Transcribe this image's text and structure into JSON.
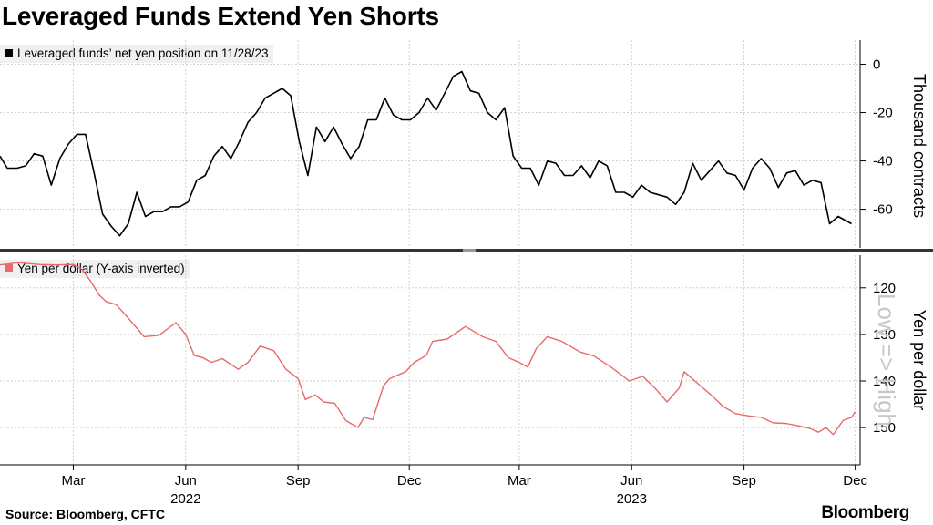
{
  "header": {
    "title": "Leveraged Funds Extend Yen Shorts"
  },
  "footer": {
    "source": "Source: Bloomberg, CFTC",
    "brand": "Bloomberg"
  },
  "colors": {
    "top_series": "#000000",
    "bottom_series": "#e86a6a",
    "grid": "#cfcfcf",
    "divider": "#333333"
  },
  "icons": {
    "brand_icon": "bloomberg-logo-glyph"
  },
  "chart_data": [
    {
      "type": "line",
      "legend": "Leveraged funds’ net yen position on 11/28/23",
      "ylabel": "Thousand contracts",
      "ylim": [
        -76,
        10
      ],
      "yticks": [
        0,
        -20,
        -40,
        -60
      ],
      "grid": true,
      "x_tick_labels": [
        "Mar",
        "Jun",
        "Sep",
        "Dec",
        "Mar",
        "Jun",
        "Sep",
        "Dec"
      ],
      "year_labels": [
        "2022",
        "2023"
      ],
      "x_range": [
        "2021-12-31",
        "2023-12-05"
      ],
      "series": [
        {
          "x": [
            "2021-12-31",
            "2022-01-06",
            "2022-01-14",
            "2022-01-21",
            "2022-01-28",
            "2022-02-04",
            "2022-02-11",
            "2022-02-18",
            "2022-02-25",
            "2022-03-04",
            "2022-03-11",
            "2022-03-18",
            "2022-03-25",
            "2022-04-01",
            "2022-04-08",
            "2022-04-15",
            "2022-04-22",
            "2022-04-29",
            "2022-05-06",
            "2022-05-13",
            "2022-05-20",
            "2022-05-27",
            "2022-06-03",
            "2022-06-10",
            "2022-06-17",
            "2022-06-24",
            "2022-07-01",
            "2022-07-08",
            "2022-07-15",
            "2022-07-22",
            "2022-07-29",
            "2022-08-05",
            "2022-08-12",
            "2022-08-19",
            "2022-08-26",
            "2022-09-02",
            "2022-09-09",
            "2022-09-16",
            "2022-09-23",
            "2022-09-30",
            "2022-10-07",
            "2022-10-14",
            "2022-10-21",
            "2022-10-28",
            "2022-11-04",
            "2022-11-11",
            "2022-11-18",
            "2022-11-25",
            "2022-12-02",
            "2022-12-09",
            "2022-12-16",
            "2022-12-23",
            "2022-12-30",
            "2023-01-06",
            "2023-01-13",
            "2023-01-20",
            "2023-01-27",
            "2023-02-03",
            "2023-02-10",
            "2023-02-17",
            "2023-02-24",
            "2023-03-03",
            "2023-03-10",
            "2023-03-17",
            "2023-03-24",
            "2023-03-31",
            "2023-04-07",
            "2023-04-14",
            "2023-04-21",
            "2023-04-28",
            "2023-05-05",
            "2023-05-12",
            "2023-05-19",
            "2023-05-26",
            "2023-06-02",
            "2023-06-09",
            "2023-06-16",
            "2023-06-23",
            "2023-06-30",
            "2023-07-07",
            "2023-07-14",
            "2023-07-21",
            "2023-07-28",
            "2023-08-04",
            "2023-08-11",
            "2023-08-18",
            "2023-08-25",
            "2023-09-01",
            "2023-09-08",
            "2023-09-15",
            "2023-09-22",
            "2023-09-29",
            "2023-10-06",
            "2023-10-13",
            "2023-10-20",
            "2023-10-27",
            "2023-11-03",
            "2023-11-10",
            "2023-11-17",
            "2023-11-28"
          ],
          "values": [
            -38,
            -43,
            -43,
            -42,
            -37,
            -38,
            -50,
            -39,
            -33,
            -29,
            -29,
            -45,
            -62,
            -67,
            -71,
            -66,
            -53,
            -63,
            -61,
            -61,
            -59,
            -59,
            -57,
            -48,
            -46,
            -38,
            -34,
            -39,
            -32,
            -24,
            -20,
            -14,
            -12,
            -10,
            -13,
            -32,
            -46,
            -26,
            -32,
            -26,
            -33,
            -39,
            -34,
            -23,
            -23,
            -14,
            -21,
            -23,
            -23,
            -20,
            -14,
            -19,
            -12,
            -5,
            -3,
            -11,
            -12,
            -20,
            -23,
            -18,
            -38,
            -43,
            -43,
            -50,
            -40,
            -41,
            -46,
            -46,
            -42,
            -47,
            -40,
            -42,
            -53,
            -53,
            -55,
            -50,
            -53,
            -54,
            -55,
            -58,
            -53,
            -41,
            -48,
            -44,
            -40,
            -45,
            -46,
            -52,
            -43,
            -39,
            -43,
            -51,
            -45,
            -44,
            -50,
            -48,
            -49,
            -66,
            -63,
            -66
          ]
        }
      ]
    },
    {
      "type": "line",
      "legend": "Yen per dollar (Y-axis inverted)",
      "ylabel": "Yen per dollar",
      "annotation": "Low => High",
      "ylim": [
        158,
        113
      ],
      "yticks": [
        120,
        130,
        140,
        150
      ],
      "grid": true,
      "x_tick_labels": [
        "Mar",
        "Jun",
        "Sep",
        "Dec",
        "Mar",
        "Jun",
        "Sep",
        "Dec"
      ],
      "year_labels": [
        "2022",
        "2023"
      ],
      "series": [
        {
          "x": [
            "2021-12-31",
            "2022-01-15",
            "2022-02-01",
            "2022-02-15",
            "2022-03-01",
            "2022-03-08",
            "2022-03-15",
            "2022-03-22",
            "2022-03-28",
            "2022-04-05",
            "2022-04-15",
            "2022-04-28",
            "2022-05-10",
            "2022-05-24",
            "2022-06-01",
            "2022-06-08",
            "2022-06-15",
            "2022-06-22",
            "2022-07-01",
            "2022-07-14",
            "2022-07-22",
            "2022-08-01",
            "2022-08-12",
            "2022-08-22",
            "2022-09-01",
            "2022-09-07",
            "2022-09-15",
            "2022-09-22",
            "2022-10-01",
            "2022-10-10",
            "2022-10-20",
            "2022-10-25",
            "2022-11-01",
            "2022-11-10",
            "2022-11-15",
            "2022-11-28",
            "2022-12-05",
            "2022-12-15",
            "2022-12-20",
            "2023-01-01",
            "2023-01-16",
            "2023-01-30",
            "2023-02-10",
            "2023-02-20",
            "2023-03-01",
            "2023-03-08",
            "2023-03-15",
            "2023-03-24",
            "2023-04-05",
            "2023-04-20",
            "2023-05-01",
            "2023-05-15",
            "2023-05-30",
            "2023-06-10",
            "2023-06-20",
            "2023-06-30",
            "2023-07-10",
            "2023-07-14",
            "2023-07-25",
            "2023-08-05",
            "2023-08-15",
            "2023-08-25",
            "2023-09-05",
            "2023-09-15",
            "2023-09-25",
            "2023-10-05",
            "2023-10-15",
            "2023-10-25",
            "2023-11-01",
            "2023-11-07",
            "2023-11-13",
            "2023-11-21",
            "2023-11-28",
            "2023-12-01"
          ],
          "values": [
            115.1,
            114.6,
            115.0,
            115.1,
            115.0,
            116.0,
            118.5,
            121.5,
            123.0,
            123.6,
            126.5,
            130.5,
            130.2,
            127.5,
            130.0,
            134.5,
            135.0,
            136.0,
            135.2,
            137.5,
            136.0,
            132.5,
            133.5,
            137.5,
            139.5,
            144.0,
            143.0,
            144.5,
            144.8,
            148.5,
            150.0,
            147.8,
            148.3,
            141.0,
            139.5,
            138.0,
            136.0,
            134.5,
            131.5,
            131.0,
            128.3,
            130.5,
            131.5,
            135.0,
            136.0,
            137.0,
            133.0,
            130.5,
            131.5,
            133.8,
            134.6,
            137.0,
            140.0,
            139.0,
            141.5,
            144.5,
            141.5,
            138.0,
            140.5,
            143.0,
            145.5,
            147.0,
            147.5,
            147.8,
            149.0,
            149.1,
            149.6,
            150.2,
            151.0,
            150.0,
            151.5,
            148.5,
            147.8,
            146.6
          ]
        }
      ]
    }
  ]
}
